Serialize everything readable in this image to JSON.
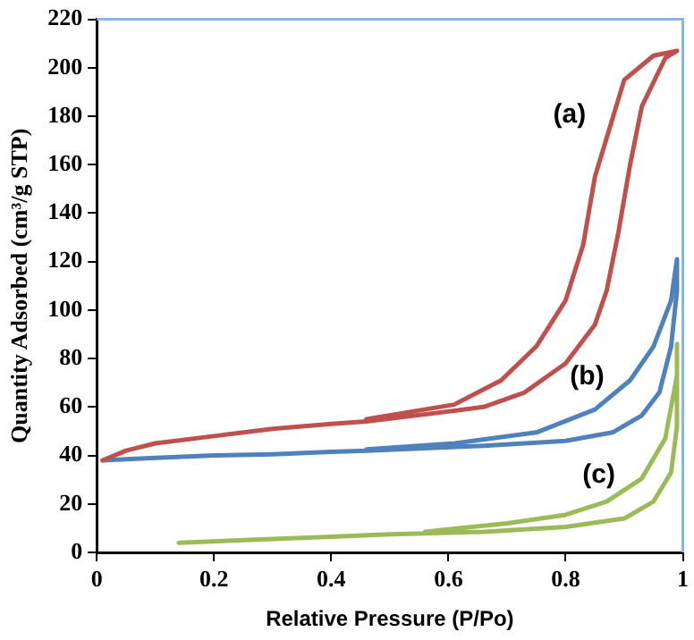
{
  "chart_data": {
    "type": "line",
    "xlabel": "Relative Pressure (P/Po)",
    "ylabel": "Quantity Adsorbed (cm³/g STP)",
    "xlim": [
      0,
      1
    ],
    "xticks": [
      0,
      0.2,
      0.4,
      0.6,
      0.8,
      1
    ],
    "ylim": [
      0,
      220
    ],
    "yticks": [
      0,
      20,
      40,
      60,
      80,
      100,
      120,
      140,
      160,
      180,
      200,
      220
    ],
    "grid": false,
    "legend": false,
    "marker": "none",
    "line_style": "solid",
    "series": [
      {
        "name": "(a)",
        "color": "#c0504d",
        "x": [
          0.01,
          0.05,
          0.1,
          0.2,
          0.3,
          0.4,
          0.46,
          0.66,
          0.73,
          0.8,
          0.85,
          0.87,
          0.89,
          0.91,
          0.93,
          0.97,
          0.99,
          0.95,
          0.9,
          0.88,
          0.85,
          0.83,
          0.8,
          0.75,
          0.69,
          0.61,
          0.46
        ],
        "values": [
          38,
          42,
          45,
          48,
          51,
          53,
          54,
          60,
          66,
          78,
          94,
          108,
          132,
          160,
          184,
          204,
          207,
          205,
          195,
          179,
          155,
          127,
          104,
          85,
          71,
          61,
          55
        ]
      },
      {
        "name": "(b)",
        "color": "#4f81bd",
        "x": [
          0.01,
          0.1,
          0.2,
          0.3,
          0.4,
          0.46,
          0.66,
          0.8,
          0.88,
          0.93,
          0.96,
          0.98,
          0.99,
          0.99,
          0.98,
          0.95,
          0.91,
          0.85,
          0.75,
          0.61,
          0.46
        ],
        "values": [
          38,
          39,
          40,
          40.5,
          41.5,
          42,
          44,
          46,
          49.5,
          56.5,
          66,
          85,
          108,
          121,
          104,
          85,
          71,
          59,
          49.5,
          45,
          42.5
        ]
      },
      {
        "name": "(c)",
        "color": "#9bbb59",
        "x": [
          0.14,
          0.3,
          0.4,
          0.5,
          0.66,
          0.8,
          0.9,
          0.95,
          0.98,
          0.99,
          0.99,
          0.99,
          0.97,
          0.93,
          0.87,
          0.8,
          0.7,
          0.56
        ],
        "values": [
          4,
          5.5,
          6.5,
          7.5,
          8.5,
          10.5,
          14,
          21,
          33,
          52,
          86,
          73,
          47,
          30.5,
          21,
          15.5,
          12,
          8.5
        ]
      }
    ]
  }
}
